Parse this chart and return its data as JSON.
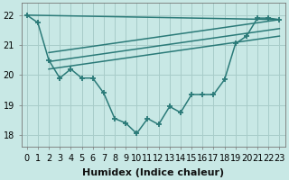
{
  "background_color": "#c8e8e5",
  "grid_color": "#a8ccc9",
  "line_color": "#2a7a78",
  "marker_style": "+",
  "marker_size": 5,
  "marker_lw": 1.3,
  "linewidth": 1.1,
  "xlabel": "Humidex (Indice chaleur)",
  "xlabel_fontsize": 8,
  "tick_fontsize": 7,
  "ylim": [
    17.6,
    22.4
  ],
  "xlim": [
    -0.5,
    23.5
  ],
  "yticks": [
    18,
    19,
    20,
    21,
    22
  ],
  "xticks": [
    0,
    1,
    2,
    3,
    4,
    5,
    6,
    7,
    8,
    9,
    10,
    11,
    12,
    13,
    14,
    15,
    16,
    17,
    18,
    19,
    20,
    21,
    22,
    23
  ],
  "series": {
    "main": {
      "x": [
        0,
        1,
        2,
        3,
        4,
        5,
        6,
        7,
        8,
        9,
        10,
        11,
        12,
        13,
        14,
        15,
        16,
        17,
        18,
        19,
        20,
        21,
        22,
        23
      ],
      "y": [
        22.0,
        21.75,
        20.5,
        19.9,
        20.2,
        19.9,
        19.9,
        19.4,
        18.55,
        18.4,
        18.05,
        18.55,
        18.35,
        18.95,
        18.75,
        19.35,
        19.35,
        19.35,
        19.85,
        21.05,
        21.3,
        21.9,
        21.9,
        21.85
      ]
    },
    "line_top": {
      "x": [
        0,
        23
      ],
      "y": [
        22.0,
        21.85
      ]
    },
    "line_mid1": {
      "x": [
        2,
        23
      ],
      "y": [
        20.75,
        21.85
      ]
    },
    "line_mid2": {
      "x": [
        2,
        23
      ],
      "y": [
        20.45,
        21.55
      ]
    },
    "line_bot": {
      "x": [
        2,
        23
      ],
      "y": [
        20.2,
        21.3
      ]
    }
  }
}
